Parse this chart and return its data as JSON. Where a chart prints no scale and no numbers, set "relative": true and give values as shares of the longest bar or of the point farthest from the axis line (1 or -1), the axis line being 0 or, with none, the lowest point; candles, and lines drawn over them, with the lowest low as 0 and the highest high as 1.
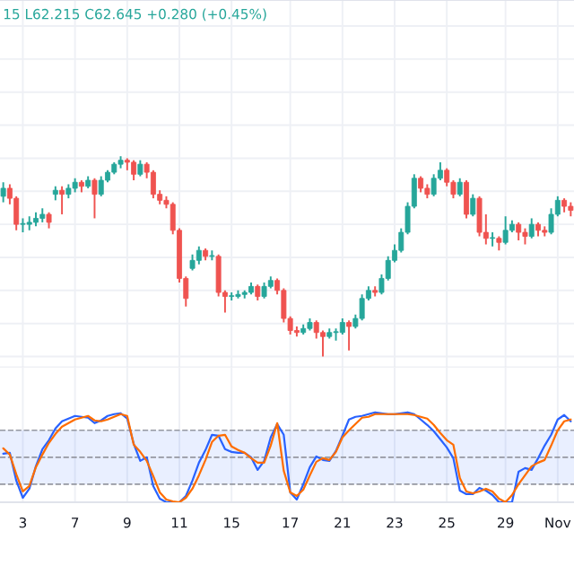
{
  "chart_data": [
    {
      "type": "candlestick",
      "relative": true,
      "annotations": [
        "15 L62.215 C62.645 +0.280 (+0.45%)"
      ],
      "grid": true,
      "categories": [
        null,
        null,
        null,
        null,
        null,
        null,
        null,
        null,
        null,
        null,
        null,
        null,
        null,
        null,
        null,
        null,
        null,
        null,
        null,
        null,
        null,
        null,
        null,
        null,
        null,
        null,
        null,
        null,
        null,
        null,
        null,
        null,
        null,
        null,
        null,
        null,
        null,
        null,
        null,
        null,
        null,
        null,
        null,
        null,
        null,
        null,
        null,
        null,
        null,
        null,
        null,
        null,
        null,
        null,
        null,
        null,
        null,
        null,
        null,
        null,
        null,
        null,
        null,
        null,
        null,
        null,
        null,
        null,
        null,
        null,
        null,
        null,
        null,
        null,
        null,
        null,
        null,
        null,
        null,
        null,
        null,
        null,
        null,
        null,
        null,
        null,
        null,
        null
      ],
      "colors": [
        "#26a69a",
        "#ef5350",
        "#ef5350",
        "#26a69a",
        "#26a69a",
        "#26a69a",
        "#26a69a",
        "#ef5350",
        "#26a69a",
        "#ef5350",
        "#26a69a",
        "#26a69a",
        "#ef5350",
        "#26a69a",
        "#ef5350",
        "#26a69a",
        "#26a69a",
        "#26a69a",
        "#26a69a",
        "#ef5350",
        "#ef5350",
        "#26a69a",
        "#ef5350",
        "#ef5350",
        "#ef5350",
        "#ef5350",
        "#ef5350",
        "#ef5350",
        "#ef5350",
        "#26a69a",
        "#26a69a",
        "#ef5350",
        "#26a69a",
        "#ef5350",
        "#ef5350",
        "#26a69a",
        "#26a69a",
        "#26a69a",
        "#26a69a",
        "#ef5350",
        "#26a69a",
        "#26a69a",
        "#ef5350",
        "#ef5350",
        "#ef5350",
        "#ef5350",
        "#26a69a",
        "#26a69a",
        "#ef5350",
        "#ef5350",
        "#26a69a",
        "#26a69a",
        "#26a69a",
        "#ef5350",
        "#26a69a",
        "#26a69a",
        "#26a69a",
        "#ef5350",
        "#26a69a",
        "#26a69a",
        "#26a69a",
        "#26a69a",
        "#26a69a",
        "#26a69a",
        "#ef5350",
        "#ef5350",
        "#26a69a",
        "#26a69a",
        "#ef5350",
        "#ef5350",
        "#26a69a",
        "#ef5350",
        "#26a69a",
        "#ef5350",
        "#ef5350",
        "#26a69a",
        "#ef5350",
        "#26a69a",
        "#26a69a",
        "#ef5350",
        "#ef5350",
        "#26a69a",
        "#ef5350",
        "#ef5350",
        "#26a69a",
        "#26a69a",
        "#ef5350",
        "#ef5350"
      ],
      "ohlc": [
        [
          0.8,
          0.87,
          0.77,
          0.84
        ],
        [
          0.84,
          0.86,
          0.76,
          0.79
        ],
        [
          0.79,
          0.8,
          0.63,
          0.66
        ],
        [
          0.66,
          0.69,
          0.62,
          0.66
        ],
        [
          0.66,
          0.7,
          0.63,
          0.67
        ],
        [
          0.67,
          0.72,
          0.65,
          0.69
        ],
        [
          0.69,
          0.74,
          0.67,
          0.71
        ],
        [
          0.71,
          0.72,
          0.64,
          0.67
        ],
        [
          0.81,
          0.85,
          0.78,
          0.83
        ],
        [
          0.83,
          0.85,
          0.71,
          0.81
        ],
        [
          0.81,
          0.86,
          0.79,
          0.84
        ],
        [
          0.84,
          0.89,
          0.82,
          0.87
        ],
        [
          0.87,
          0.88,
          0.82,
          0.85
        ],
        [
          0.85,
          0.9,
          0.84,
          0.88
        ],
        [
          0.88,
          0.89,
          0.69,
          0.81
        ],
        [
          0.81,
          0.9,
          0.8,
          0.88
        ],
        [
          0.88,
          0.93,
          0.87,
          0.92
        ],
        [
          0.92,
          0.97,
          0.91,
          0.96
        ],
        [
          0.96,
          1.0,
          0.94,
          0.98
        ],
        [
          0.98,
          0.99,
          0.93,
          0.97
        ],
        [
          0.97,
          0.98,
          0.88,
          0.91
        ],
        [
          0.91,
          0.98,
          0.9,
          0.96
        ],
        [
          0.96,
          0.97,
          0.89,
          0.92
        ],
        [
          0.92,
          0.93,
          0.79,
          0.81
        ],
        [
          0.81,
          0.83,
          0.76,
          0.78
        ],
        [
          0.78,
          0.8,
          0.74,
          0.76
        ],
        [
          0.76,
          0.77,
          0.61,
          0.63
        ],
        [
          0.63,
          0.64,
          0.37,
          0.39
        ],
        [
          0.39,
          0.4,
          0.25,
          0.29
        ],
        [
          0.44,
          0.51,
          0.43,
          0.48
        ],
        [
          0.48,
          0.55,
          0.46,
          0.53
        ],
        [
          0.53,
          0.54,
          0.48,
          0.5
        ],
        [
          0.5,
          0.53,
          0.48,
          0.5
        ],
        [
          0.5,
          0.51,
          0.3,
          0.32
        ],
        [
          0.32,
          0.33,
          0.22,
          0.3
        ],
        [
          0.3,
          0.32,
          0.28,
          0.3
        ],
        [
          0.3,
          0.33,
          0.29,
          0.31
        ],
        [
          0.31,
          0.33,
          0.29,
          0.32
        ],
        [
          0.32,
          0.37,
          0.31,
          0.35
        ],
        [
          0.35,
          0.36,
          0.28,
          0.3
        ],
        [
          0.3,
          0.37,
          0.29,
          0.35
        ],
        [
          0.35,
          0.4,
          0.34,
          0.38
        ],
        [
          0.38,
          0.39,
          0.31,
          0.33
        ],
        [
          0.33,
          0.34,
          0.17,
          0.19
        ],
        [
          0.19,
          0.2,
          0.11,
          0.13
        ],
        [
          0.13,
          0.15,
          0.1,
          0.12
        ],
        [
          0.12,
          0.16,
          0.11,
          0.14
        ],
        [
          0.14,
          0.19,
          0.13,
          0.17
        ],
        [
          0.17,
          0.18,
          0.09,
          0.12
        ],
        [
          0.12,
          0.13,
          0.0,
          0.1
        ],
        [
          0.1,
          0.14,
          0.09,
          0.12
        ],
        [
          0.12,
          0.14,
          0.08,
          0.12
        ],
        [
          0.12,
          0.19,
          0.11,
          0.17
        ],
        [
          0.17,
          0.18,
          0.03,
          0.15
        ],
        [
          0.15,
          0.21,
          0.14,
          0.19
        ],
        [
          0.19,
          0.31,
          0.18,
          0.29
        ],
        [
          0.29,
          0.35,
          0.28,
          0.33
        ],
        [
          0.33,
          0.35,
          0.3,
          0.32
        ],
        [
          0.32,
          0.41,
          0.31,
          0.39
        ],
        [
          0.39,
          0.5,
          0.38,
          0.48
        ],
        [
          0.48,
          0.56,
          0.47,
          0.53
        ],
        [
          0.53,
          0.64,
          0.52,
          0.62
        ],
        [
          0.62,
          0.77,
          0.61,
          0.75
        ],
        [
          0.75,
          0.91,
          0.74,
          0.89
        ],
        [
          0.89,
          0.9,
          0.82,
          0.84
        ],
        [
          0.84,
          0.86,
          0.79,
          0.81
        ],
        [
          0.81,
          0.91,
          0.8,
          0.89
        ],
        [
          0.89,
          0.97,
          0.88,
          0.93
        ],
        [
          0.93,
          0.94,
          0.85,
          0.87
        ],
        [
          0.87,
          0.88,
          0.79,
          0.81
        ],
        [
          0.81,
          0.89,
          0.8,
          0.87
        ],
        [
          0.87,
          0.88,
          0.69,
          0.71
        ],
        [
          0.71,
          0.81,
          0.7,
          0.79
        ],
        [
          0.79,
          0.8,
          0.6,
          0.62
        ],
        [
          0.62,
          0.71,
          0.56,
          0.59
        ],
        [
          0.59,
          0.62,
          0.55,
          0.59
        ],
        [
          0.59,
          0.6,
          0.53,
          0.57
        ],
        [
          0.57,
          0.7,
          0.56,
          0.63
        ],
        [
          0.63,
          0.68,
          0.62,
          0.66
        ],
        [
          0.66,
          0.67,
          0.58,
          0.62
        ],
        [
          0.62,
          0.64,
          0.56,
          0.6
        ],
        [
          0.6,
          0.69,
          0.59,
          0.66
        ],
        [
          0.66,
          0.67,
          0.6,
          0.63
        ],
        [
          0.63,
          0.65,
          0.6,
          0.62
        ],
        [
          0.62,
          0.74,
          0.61,
          0.71
        ],
        [
          0.71,
          0.8,
          0.7,
          0.78
        ],
        [
          0.78,
          0.79,
          0.72,
          0.75
        ],
        [
          0.75,
          0.77,
          0.7,
          0.73
        ]
      ]
    },
    {
      "type": "line",
      "relative": true,
      "grid": "x",
      "categories": [
        null,
        null,
        null,
        "3",
        null,
        null,
        null,
        null,
        null,
        null,
        null,
        "7",
        null,
        null,
        null,
        null,
        null,
        null,
        null,
        "9",
        null,
        null,
        null,
        null,
        null,
        null,
        null,
        "11",
        null,
        null,
        null,
        null,
        null,
        null,
        null,
        "15",
        null,
        null,
        null,
        null,
        null,
        null,
        null,
        null,
        "17",
        null,
        null,
        null,
        null,
        null,
        null,
        null,
        "21",
        null,
        null,
        null,
        null,
        null,
        null,
        null,
        "23",
        null,
        null,
        null,
        null,
        null,
        null,
        null,
        "25",
        null,
        null,
        null,
        null,
        null,
        null,
        null,
        null,
        "29",
        null,
        null,
        null,
        null,
        null,
        null,
        null,
        "Nov",
        null,
        null
      ],
      "bands": [
        {
          "axis": "y",
          "from": 0.2,
          "to": 0.8,
          "color": "#2962ff"
        }
      ],
      "ref_lines": [
        {
          "axis": "y",
          "value": 0.8,
          "color": "#9598a1",
          "line_style": "dashed"
        },
        {
          "axis": "y",
          "value": 0.5,
          "color": "#9598a1",
          "line_style": "dashed"
        },
        {
          "axis": "y",
          "value": 0.2,
          "color": "#9598a1",
          "line_style": "dashed"
        }
      ],
      "series": [
        {
          "color": "#2962ff",
          "values": [
            0.54,
            0.55,
            0.24,
            0.05,
            0.15,
            0.4,
            0.59,
            0.69,
            0.82,
            0.9,
            0.93,
            0.96,
            0.95,
            0.94,
            0.88,
            0.91,
            0.96,
            0.98,
            0.99,
            0.93,
            0.65,
            0.46,
            0.5,
            0.18,
            0.04,
            0,
            0,
            0,
            0.07,
            0.24,
            0.44,
            0.58,
            0.75,
            0.74,
            0.59,
            0.56,
            0.55,
            0.55,
            0.5,
            0.36,
            0.46,
            0.72,
            0.87,
            0.75,
            0.11,
            0.03,
            0.2,
            0.39,
            0.51,
            0.47,
            0.46,
            0.57,
            0.74,
            0.92,
            0.95,
            0.96,
            0.98,
            1.0,
            0.99,
            0.98,
            0.98,
            0.99,
            1.0,
            0.98,
            0.92,
            0.86,
            0.79,
            0.7,
            0.61,
            0.49,
            0.13,
            0.09,
            0.09,
            0.16,
            0.13,
            0.08,
            0,
            0,
            0,
            0.34,
            0.38,
            0.36,
            0.49,
            0.63,
            0.75,
            0.92,
            0.97,
            0.9
          ]
        },
        {
          "color": "#ff6d00",
          "values": [
            0.6,
            0.53,
            0.31,
            0.12,
            0.18,
            0.39,
            0.53,
            0.66,
            0.76,
            0.84,
            0.88,
            0.92,
            0.94,
            0.96,
            0.91,
            0.9,
            0.92,
            0.95,
            0.98,
            0.96,
            0.64,
            0.56,
            0.46,
            0.29,
            0.11,
            0.03,
            0.01,
            0,
            0.05,
            0.15,
            0.3,
            0.47,
            0.67,
            0.74,
            0.75,
            0.62,
            0.58,
            0.55,
            0.49,
            0.44,
            0.44,
            0.63,
            0.88,
            0.35,
            0.11,
            0.07,
            0.14,
            0.3,
            0.45,
            0.49,
            0.47,
            0.56,
            0.72,
            0.8,
            0.87,
            0.94,
            0.95,
            0.98,
            0.98,
            0.98,
            0.98,
            0.98,
            0.98,
            0.97,
            0.95,
            0.93,
            0.86,
            0.77,
            0.69,
            0.64,
            0.27,
            0.12,
            0.1,
            0.12,
            0.15,
            0.12,
            0.04,
            0,
            0.08,
            0.2,
            0.3,
            0.4,
            0.44,
            0.47,
            0.63,
            0.8,
            0.9,
            0.92
          ]
        }
      ]
    }
  ]
}
